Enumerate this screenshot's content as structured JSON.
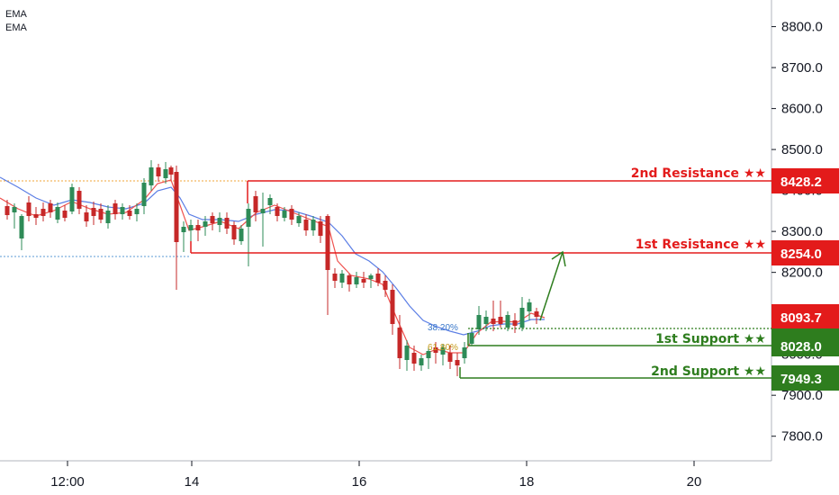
{
  "legend": [
    "EMA",
    "EMA"
  ],
  "chart_data": {
    "type": "candlestick",
    "y_ticks": [
      7800,
      7900,
      8000,
      8100,
      8200,
      8300,
      8400,
      8500,
      8600,
      8700,
      8800
    ],
    "y_tick_labels": [
      "7800.0",
      "7900.0",
      "8000.0",
      "8100.0",
      "8200.0",
      "8300.0",
      "8400.0",
      "8500.0",
      "8600.0",
      "8700.0",
      "8800.0"
    ],
    "ylim": [
      7740,
      8865
    ],
    "x_tick_labels": [
      "12:00",
      "14",
      "16",
      "18",
      "20"
    ],
    "levels": [
      {
        "name": "2nd Resistance ★★",
        "value": 8428.2,
        "label": "8428.2",
        "color": "#e31b1b"
      },
      {
        "name": "1st Resistance ★★",
        "value": 8254.0,
        "label": "8254.0",
        "color": "#e31b1b"
      },
      {
        "name": "1st Support ★★",
        "value": 8028.0,
        "label": "8028.0",
        "color": "#2e7d1e"
      },
      {
        "name": "2nd Support ★★",
        "value": 7949.3,
        "label": "7949.3",
        "color": "#2e7d1e"
      }
    ],
    "current_price": {
      "value": 8093.7,
      "label": "8093.7",
      "color": "#e31b1b"
    },
    "fib_levels": [
      {
        "label": "38.20%",
        "value": 8088,
        "color": "#3a78c9"
      },
      {
        "label": "61.80%",
        "value": 8035,
        "color": "#c59a18"
      }
    ],
    "colors": {
      "up": "#2e8b57",
      "down": "#c62828",
      "ema_fast": "#ef5350",
      "ema_slow": "#5b7ee5",
      "grid": "#e6e6e6"
    }
  }
}
